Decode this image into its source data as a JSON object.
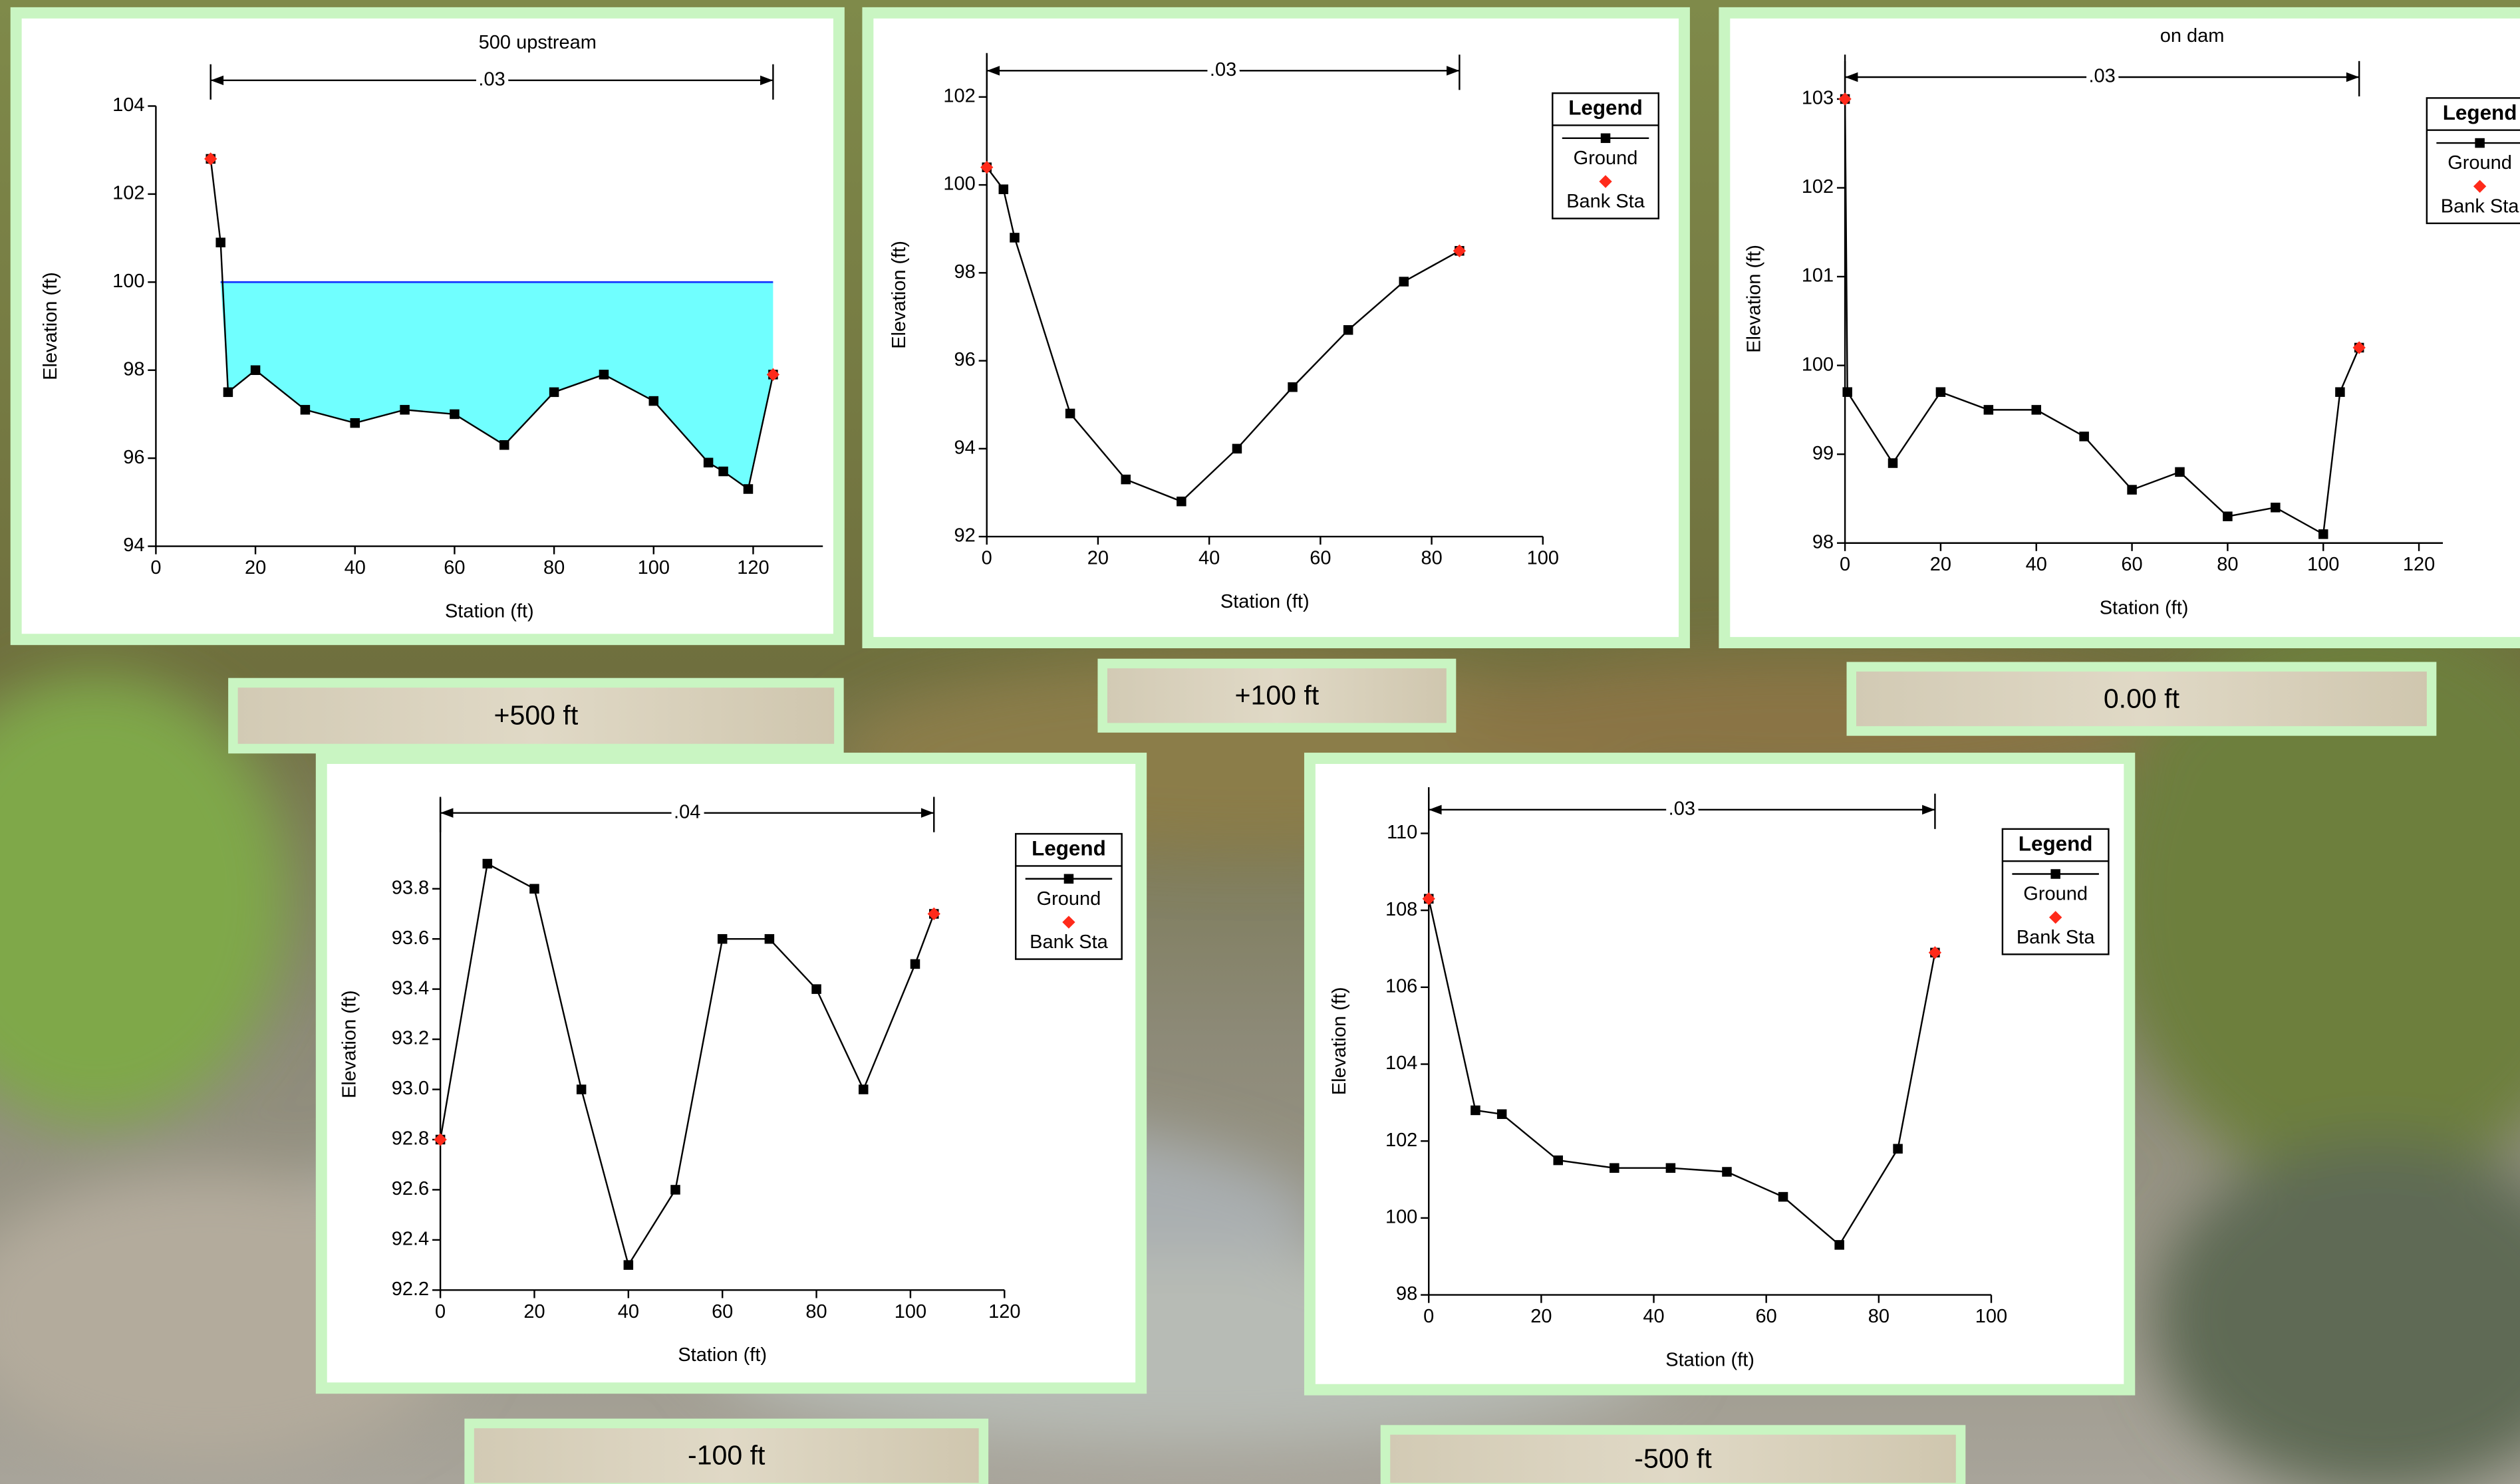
{
  "chart_data": [
    {
      "type": "line",
      "title": "500 upstream",
      "annotation": ".03",
      "xlabel": "Station (ft)",
      "ylabel": "Elevation (ft)",
      "caption": "+500 ft",
      "xlim": [
        0,
        134
      ],
      "ylim": [
        94,
        104
      ],
      "xticks": [
        0,
        20,
        40,
        60,
        80,
        100,
        120
      ],
      "yticks": [
        94,
        96,
        98,
        100,
        102,
        104
      ],
      "legend": false,
      "water_surface": 100,
      "water_color": "#70ffff",
      "series": [
        {
          "color": "#000000",
          "marker": "square",
          "line": true,
          "x": [
            11,
            13,
            14.5,
            20,
            30,
            40,
            50,
            60,
            70,
            80,
            90,
            100,
            111,
            114,
            119,
            124
          ],
          "values": [
            102.8,
            100.9,
            97.5,
            98,
            97.1,
            96.8,
            97.1,
            97,
            96.3,
            97.5,
            97.9,
            97.3,
            95.9,
            95.7,
            95.3,
            97.9
          ]
        },
        {
          "color": "#ff2a1a",
          "marker": "diamond",
          "line": false,
          "x": [
            11,
            124
          ],
          "values": [
            102.8,
            97.9
          ]
        }
      ]
    },
    {
      "type": "line",
      "annotation": ".03",
      "xlabel": "Station (ft)",
      "ylabel": "Elevation (ft)",
      "caption": "+100 ft",
      "xlim": [
        0,
        100
      ],
      "ylim": [
        92,
        103
      ],
      "xticks": [
        0,
        20,
        40,
        60,
        80,
        100
      ],
      "yticks": [
        92,
        94,
        96,
        98,
        100,
        102
      ],
      "legend": true,
      "legend_title": "Legend",
      "series": [
        {
          "name": "Ground",
          "color": "#000000",
          "marker": "square",
          "line": true,
          "x": [
            0,
            3,
            5,
            15,
            25,
            35,
            45,
            55,
            65,
            75,
            85
          ],
          "values": [
            100.4,
            99.9,
            98.8,
            94.8,
            93.3,
            92.8,
            94,
            95.4,
            96.7,
            97.8,
            98.5
          ]
        },
        {
          "name": "Bank Sta",
          "color": "#ff2a1a",
          "marker": "diamond",
          "line": false,
          "x": [
            0,
            85
          ],
          "values": [
            100.4,
            98.5
          ]
        }
      ]
    },
    {
      "type": "line",
      "title": "on dam",
      "annotation": ".03",
      "xlabel": "Station (ft)",
      "ylabel": "Elevation (ft)",
      "caption": "0.00 ft",
      "xlim": [
        0,
        125
      ],
      "ylim": [
        98,
        103.5
      ],
      "xticks": [
        0,
        20,
        40,
        60,
        80,
        100,
        120
      ],
      "yticks": [
        98,
        99,
        100,
        101,
        102,
        103
      ],
      "legend": true,
      "legend_title": "Legend",
      "series": [
        {
          "name": "Ground",
          "color": "#000000",
          "marker": "square",
          "line": true,
          "x": [
            0,
            0.5,
            10,
            20,
            30,
            40,
            50,
            60,
            70,
            80,
            90,
            100,
            103.5,
            107.5
          ],
          "values": [
            103,
            99.7,
            98.9,
            99.7,
            99.5,
            99.5,
            99.2,
            98.6,
            98.8,
            98.3,
            98.4,
            98.1,
            99.7,
            100.2
          ]
        },
        {
          "name": "Bank Sta",
          "color": "#ff2a1a",
          "marker": "diamond",
          "line": false,
          "x": [
            0,
            107.5
          ],
          "values": [
            103,
            100.2
          ]
        }
      ]
    },
    {
      "type": "line",
      "annotation": ".04",
      "xlabel": "Station (ft)",
      "ylabel": "Elevation (ft)",
      "caption": "-100 ft",
      "xlim": [
        0,
        120
      ],
      "ylim": [
        92.2,
        94.16
      ],
      "xticks": [
        0,
        20,
        40,
        60,
        80,
        100,
        120
      ],
      "yticks": [
        92.2,
        92.4,
        92.6,
        92.8,
        {
          "value": 93,
          "label": "93.0"
        },
        93.2,
        93.4,
        93.6,
        93.8
      ],
      "legend": true,
      "legend_title": "Legend",
      "series": [
        {
          "name": "Ground",
          "color": "#000000",
          "marker": "square",
          "line": true,
          "x": [
            0,
            10,
            20,
            30,
            40,
            50,
            60,
            70,
            80,
            90,
            101,
            105
          ],
          "values": [
            92.8,
            93.9,
            93.8,
            93,
            92.3,
            92.6,
            93.6,
            93.6,
            93.4,
            93,
            93.5,
            93.7
          ]
        },
        {
          "name": "Bank Sta",
          "color": "#ff2a1a",
          "marker": "diamond",
          "line": false,
          "x": [
            0,
            105
          ],
          "values": [
            92.8,
            93.7
          ]
        }
      ]
    },
    {
      "type": "line",
      "annotation": ".03",
      "xlabel": "Station (ft)",
      "ylabel": "Elevation (ft)",
      "caption": "-500 ft",
      "xlim": [
        0,
        100
      ],
      "ylim": [
        98,
        111.2
      ],
      "xticks": [
        0,
        20,
        40,
        60,
        80,
        100
      ],
      "yticks": [
        98,
        100,
        102,
        104,
        106,
        108,
        110
      ],
      "legend": true,
      "legend_title": "Legend",
      "series": [
        {
          "name": "Ground",
          "color": "#000000",
          "marker": "square",
          "line": true,
          "x": [
            0,
            8.3,
            13,
            23,
            33,
            43,
            53,
            63,
            73,
            83.4,
            90
          ],
          "values": [
            108.3,
            102.8,
            102.7,
            101.5,
            101.3,
            101.3,
            101.2,
            100.55,
            99.3,
            101.8,
            106.9
          ]
        },
        {
          "name": "Bank Sta",
          "color": "#ff2a1a",
          "marker": "diamond",
          "line": false,
          "x": [
            0,
            90
          ],
          "values": [
            108.3,
            106.9
          ]
        }
      ]
    }
  ]
}
